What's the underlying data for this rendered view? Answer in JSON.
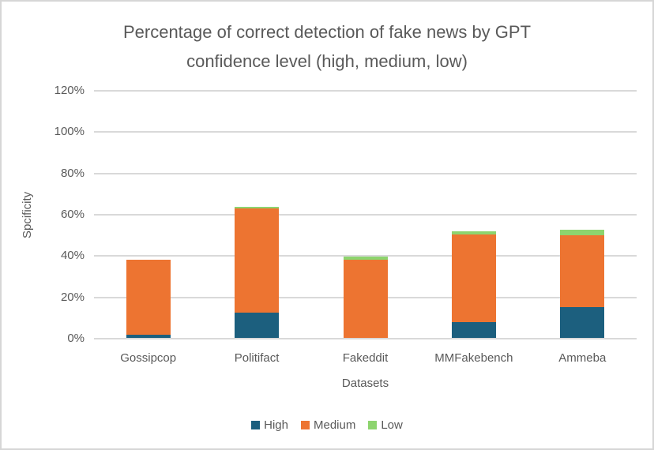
{
  "title_lines": [
    "Percentage of correct detection of fake news by GPT",
    "confidence level (high, medium, low)"
  ],
  "chart_data": {
    "type": "bar",
    "stacked": true,
    "title": "Percentage of correct detection of fake news by GPT confidence level (high, medium, low)",
    "xlabel": "Datasets",
    "ylabel": "Spcificity",
    "categories": [
      "Gossipcop",
      "Politifact",
      "Fakeddit",
      "MMFakebench",
      "Ammeba"
    ],
    "series": [
      {
        "name": "High",
        "color": "#1C5F7E",
        "values": [
          1.5,
          12.2,
          0,
          7.6,
          14.9
        ]
      },
      {
        "name": "Medium",
        "color": "#ED7431",
        "values": [
          36.5,
          50.6,
          37.9,
          42.4,
          34.9
        ]
      },
      {
        "name": "Low",
        "color": "#8DD46E",
        "values": [
          0,
          0.8,
          1.5,
          1.5,
          2.6
        ]
      }
    ],
    "totals": [
      38.0,
      63.6,
      39.4,
      51.5,
      52.4
    ],
    "ylim": [
      0,
      120
    ],
    "ytick_values": [
      0,
      20,
      40,
      60,
      80,
      100,
      120
    ],
    "ytick_labels": [
      "0%",
      "20%",
      "40%",
      "60%",
      "80%",
      "100%",
      "120%"
    ],
    "grid": true,
    "legend_position": "bottom",
    "legend_entries": [
      "High",
      "Medium",
      "Low"
    ]
  },
  "colors": {
    "high": "#1C5F7E",
    "medium": "#ED7431",
    "low": "#8DD46E",
    "gridline": "#D9D9D9",
    "text": "#595959",
    "border": "#D6D6D6",
    "background": "#FFFFFF"
  }
}
